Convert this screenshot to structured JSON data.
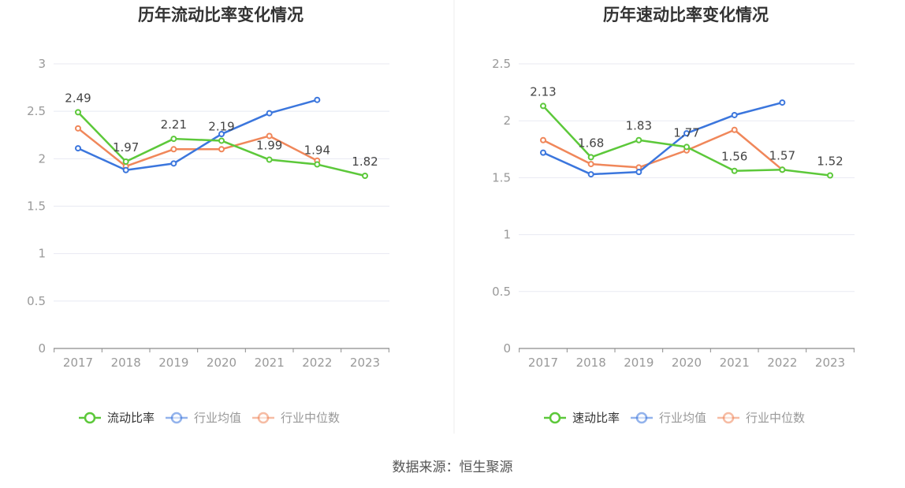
{
  "chart_data": [
    {
      "type": "line",
      "title": "历年流动比率变化情况",
      "categories": [
        "2017",
        "2018",
        "2019",
        "2020",
        "2021",
        "2022",
        "2023"
      ],
      "ylim": [
        0,
        3
      ],
      "yticks": [
        "0",
        "0.5",
        "1",
        "1.5",
        "2",
        "2.5",
        "3"
      ],
      "grid": true,
      "legend": "bottom",
      "series": [
        {
          "name": "流动比率",
          "color": "#5cc83a",
          "values": [
            2.49,
            1.97,
            2.21,
            2.19,
            1.99,
            1.94,
            1.82
          ],
          "labels": [
            "2.49",
            "1.97",
            "2.21",
            "2.19",
            "1.99",
            "1.94",
            "1.82"
          ]
        },
        {
          "name": "行业均值",
          "color": "#3b76dd",
          "values": [
            2.11,
            1.88,
            1.95,
            2.26,
            2.48,
            2.62,
            null
          ]
        },
        {
          "name": "行业中位数",
          "color": "#f0875a",
          "values": [
            2.32,
            1.92,
            2.1,
            2.1,
            2.24,
            1.98,
            null
          ]
        }
      ]
    },
    {
      "type": "line",
      "title": "历年速动比率变化情况",
      "categories": [
        "2017",
        "2018",
        "2019",
        "2020",
        "2021",
        "2022",
        "2023"
      ],
      "ylim": [
        0,
        2.5
      ],
      "yticks": [
        "0",
        "0.5",
        "1",
        "1.5",
        "2",
        "2.5"
      ],
      "grid": true,
      "legend": "bottom",
      "series": [
        {
          "name": "速动比率",
          "color": "#5cc83a",
          "values": [
            2.13,
            1.68,
            1.83,
            1.77,
            1.56,
            1.57,
            1.52
          ],
          "labels": [
            "2.13",
            "1.68",
            "1.83",
            "1.77",
            "1.56",
            "1.57",
            "1.52"
          ]
        },
        {
          "name": "行业均值",
          "color": "#3b76dd",
          "values": [
            1.72,
            1.53,
            1.55,
            1.89,
            2.05,
            2.16,
            null
          ]
        },
        {
          "name": "行业中位数",
          "color": "#f0875a",
          "values": [
            1.83,
            1.62,
            1.59,
            1.74,
            1.92,
            1.57,
            null
          ]
        }
      ]
    }
  ],
  "footer": {
    "source": "数据来源：恒生聚源"
  }
}
